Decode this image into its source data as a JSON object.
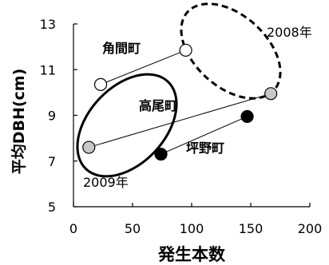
{
  "chart_data": {
    "type": "scatter",
    "xlabel": "発生本数",
    "ylabel": "平均DBH(cm)",
    "xlim": [
      0,
      200
    ],
    "ylim": [
      5,
      13
    ],
    "x_ticks": [
      0,
      50,
      100,
      150,
      200
    ],
    "y_ticks": [
      5,
      7,
      9,
      11,
      13
    ],
    "grid": false,
    "series": [
      {
        "name": "角間町",
        "points": [
          {
            "x": 95,
            "y": 11.85,
            "fill": "#ffffff"
          },
          {
            "x": 23,
            "y": 10.35,
            "fill": "#ffffff"
          }
        ]
      },
      {
        "name": "高尾町",
        "points": [
          {
            "x": 167,
            "y": 9.95,
            "fill": "#c8c8c8"
          },
          {
            "x": 13,
            "y": 7.6,
            "fill": "#c8c8c8"
          }
        ]
      },
      {
        "name": "坪野町",
        "points": [
          {
            "x": 147,
            "y": 8.95,
            "fill": "#000000"
          },
          {
            "x": 74,
            "y": 7.3,
            "fill": "#000000"
          }
        ]
      }
    ],
    "annotations": [
      "2008年",
      "2009年"
    ]
  }
}
